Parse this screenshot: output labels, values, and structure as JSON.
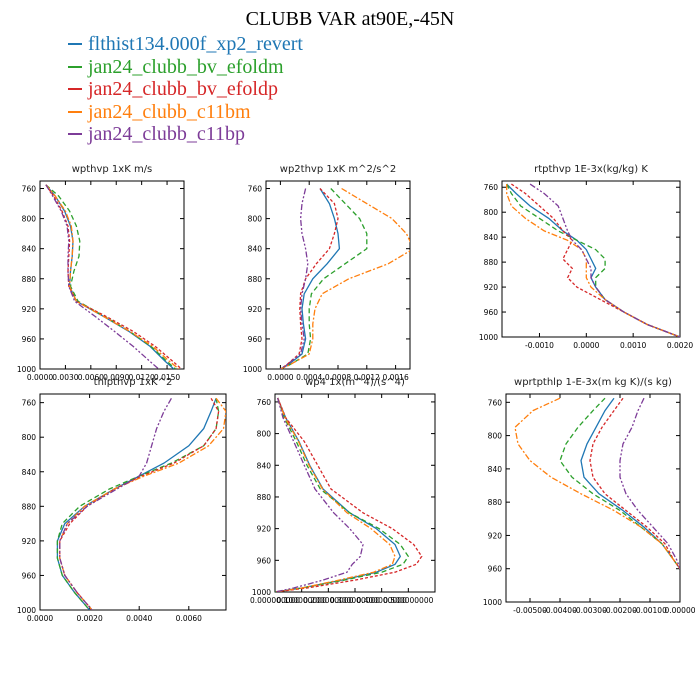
{
  "title": "CLUBB VAR at90E,-45N",
  "legend": [
    {
      "label": "flthist134.000f_xp2_revert",
      "color": "#1f77b4"
    },
    {
      "label": "jan24_clubb_bv_efoldm",
      "color": "#2ca02c"
    },
    {
      "label": "jan24_clubb_bv_efoldp",
      "color": "#d62728"
    },
    {
      "label": "jan24_clubb_c11bm",
      "color": "#ff7f0e"
    },
    {
      "label": "jan24_clubb_c11bp",
      "color": "#7d3c98"
    }
  ],
  "chart_data": [
    {
      "type": "line",
      "title": "wpthvp  1xK m/s",
      "xlim": [
        0,
        0.017
      ],
      "ylim": [
        1000,
        750
      ],
      "xticks": [
        "0.0000",
        "0.0030",
        "0.0060",
        "0.0090",
        "0.0120",
        "0.0150"
      ],
      "xtick_values": [
        0,
        0.003,
        0.006,
        0.009,
        0.012,
        0.015
      ],
      "yticks": [
        "760",
        "800",
        "840",
        "880",
        "920",
        "960",
        "1000"
      ],
      "ytick_values": [
        760,
        800,
        840,
        880,
        920,
        960,
        1000
      ],
      "y": [
        755,
        770,
        790,
        810,
        830,
        850,
        870,
        890,
        910,
        930,
        950,
        970,
        990,
        1000
      ],
      "series": [
        {
          "name": "flthist134.000f_xp2_revert",
          "x": [
            0.0007,
            0.0018,
            0.0029,
            0.0036,
            0.0039,
            0.0038,
            0.0036,
            0.0035,
            0.0043,
            0.0075,
            0.0105,
            0.013,
            0.0148,
            0.0158
          ]
        },
        {
          "name": "jan24_clubb_bv_efoldm",
          "x": [
            0.0007,
            0.0022,
            0.0035,
            0.0043,
            0.0047,
            0.0046,
            0.004,
            0.0036,
            0.0045,
            0.0076,
            0.0106,
            0.0131,
            0.015,
            0.016
          ]
        },
        {
          "name": "jan24_clubb_bv_efoldp",
          "x": [
            0.0007,
            0.0016,
            0.0026,
            0.0033,
            0.0035,
            0.0034,
            0.0033,
            0.0034,
            0.0043,
            0.0078,
            0.011,
            0.0136,
            0.0157,
            0.0167
          ]
        },
        {
          "name": "jan24_clubb_c11bm",
          "x": [
            0.0007,
            0.0018,
            0.003,
            0.0037,
            0.0039,
            0.0038,
            0.0036,
            0.0035,
            0.0043,
            0.0075,
            0.0106,
            0.0133,
            0.0153,
            0.0164
          ]
        },
        {
          "name": "jan24_clubb_c11bp",
          "x": [
            0.0007,
            0.0015,
            0.0025,
            0.0032,
            0.0034,
            0.0033,
            0.0033,
            0.0034,
            0.0041,
            0.0065,
            0.0088,
            0.011,
            0.013,
            0.014
          ]
        }
      ]
    },
    {
      "type": "line",
      "title": "wp2thvp  1xK m^2/s^2",
      "xlim": [
        -0.0002,
        0.0018
      ],
      "ylim": [
        1000,
        750
      ],
      "xticks": [
        "0.0000",
        "0.0004",
        "0.0008",
        "0.0012",
        "0.0016"
      ],
      "xtick_values": [
        0,
        0.0004,
        0.0008,
        0.0012,
        0.0016
      ],
      "yticks": [
        "760",
        "800",
        "840",
        "880",
        "920",
        "960",
        "1000"
      ],
      "ytick_values": [
        760,
        800,
        840,
        880,
        920,
        960,
        1000
      ],
      "y": [
        760,
        780,
        800,
        820,
        840,
        860,
        880,
        900,
        920,
        940,
        960,
        980,
        995,
        1000
      ],
      "series": [
        {
          "name": "flthist134.000f_xp2_revert",
          "x": [
            0.00055,
            0.00068,
            0.00075,
            0.0008,
            0.00082,
            0.00065,
            0.00045,
            0.00033,
            0.0003,
            0.00032,
            0.00035,
            0.0003,
            0.0001,
            0.0
          ]
        },
        {
          "name": "jan24_clubb_bv_efoldm",
          "x": [
            0.0007,
            0.0009,
            0.0011,
            0.0012,
            0.0012,
            0.0009,
            0.0006,
            0.00043,
            0.0004,
            0.0004,
            0.00042,
            0.00038,
            0.00012,
            0.0
          ]
        },
        {
          "name": "jan24_clubb_bv_efoldp",
          "x": [
            0.00055,
            0.00075,
            0.0008,
            0.00075,
            0.00068,
            0.0005,
            0.00035,
            0.00028,
            0.00027,
            0.00028,
            0.0003,
            0.00026,
            8e-05,
            0.0
          ]
        },
        {
          "name": "jan24_clubb_c11bm",
          "x": [
            0.00085,
            0.0012,
            0.00155,
            0.00175,
            0.00185,
            0.0015,
            0.00095,
            0.00058,
            0.00048,
            0.00045,
            0.00045,
            0.0004,
            0.00012,
            0.0
          ]
        },
        {
          "name": "jan24_clubb_c11bp",
          "x": [
            0.00035,
            0.0003,
            0.00028,
            0.0003,
            0.00035,
            0.00038,
            0.00035,
            0.0003,
            0.00028,
            0.0003,
            0.00033,
            0.00028,
            8e-05,
            0.0
          ]
        }
      ]
    },
    {
      "type": "line",
      "title": "rtpthvp  1E-3x(kg/kg) K",
      "xlim": [
        -0.0018,
        0.002
      ],
      "ylim": [
        1000,
        750
      ],
      "xticks": [
        "-0.0010",
        "0.0000",
        "0.0010",
        "0.0020"
      ],
      "xtick_values": [
        -0.001,
        0,
        0.001,
        0.002
      ],
      "yticks": [
        "760",
        "800",
        "840",
        "880",
        "920",
        "960",
        "1000"
      ],
      "ytick_values": [
        760,
        800,
        840,
        880,
        920,
        960,
        1000
      ],
      "y": [
        755,
        770,
        790,
        810,
        830,
        845,
        860,
        875,
        890,
        905,
        920,
        940,
        960,
        980,
        1000
      ],
      "series": [
        {
          "name": "flthist134.000f_xp2_revert",
          "x": [
            -0.0017,
            -0.0015,
            -0.0012,
            -0.0008,
            -0.0005,
            -0.0002,
            0.0,
            0.0001,
            0.0002,
            0.0001,
            0.0002,
            0.0004,
            0.0008,
            0.0013,
            0.002
          ]
        },
        {
          "name": "jan24_clubb_bv_efoldm",
          "x": [
            -0.0017,
            -0.0016,
            -0.0014,
            -0.001,
            -0.0006,
            -0.0002,
            0.0002,
            0.0004,
            0.0004,
            0.0002,
            0.0002,
            0.0004,
            0.0008,
            0.0013,
            0.002
          ]
        },
        {
          "name": "jan24_clubb_bv_efoldp",
          "x": [
            -0.0016,
            -0.0013,
            -0.001,
            -0.0007,
            -0.0005,
            -0.0003,
            -0.0004,
            -0.0005,
            -0.0003,
            -0.0004,
            -0.0002,
            0.0003,
            0.0008,
            0.0013,
            0.002
          ]
        },
        {
          "name": "jan24_clubb_c11bm",
          "x": [
            -0.0017,
            -0.0017,
            -0.0016,
            -0.0013,
            -0.0009,
            -0.0004,
            -0.0001,
            0.0,
            0.0,
            0.0,
            0.0001,
            0.0004,
            0.0008,
            0.0013,
            0.002
          ]
        },
        {
          "name": "jan24_clubb_c11bp",
          "x": [
            -0.0012,
            -0.0009,
            -0.0006,
            -0.0005,
            -0.0004,
            -0.0003,
            -0.0001,
            0.0,
            0.0001,
            0.0001,
            0.0002,
            0.0004,
            0.0008,
            0.0013,
            0.002
          ]
        }
      ]
    },
    {
      "type": "line",
      "title": "thlpthvp  1xK^2",
      "xlim": [
        0,
        0.0075
      ],
      "ylim": [
        1000,
        750
      ],
      "xticks": [
        "0.0000",
        "0.0020",
        "0.0040",
        "0.0060"
      ],
      "xtick_values": [
        0,
        0.002,
        0.004,
        0.006
      ],
      "yticks": [
        "760",
        "800",
        "840",
        "880",
        "920",
        "960",
        "1000"
      ],
      "ytick_values": [
        760,
        800,
        840,
        880,
        920,
        960,
        1000
      ],
      "y": [
        755,
        770,
        790,
        810,
        830,
        845,
        860,
        880,
        900,
        920,
        940,
        960,
        980,
        1000
      ],
      "series": [
        {
          "name": "flthist134.000f_xp2_revert",
          "x": [
            0.0071,
            0.0069,
            0.0066,
            0.006,
            0.005,
            0.004,
            0.003,
            0.0018,
            0.001,
            0.0007,
            0.0007,
            0.0009,
            0.0014,
            0.002
          ]
        },
        {
          "name": "jan24_clubb_bv_efoldm",
          "x": [
            0.0071,
            0.0072,
            0.0071,
            0.0066,
            0.0053,
            0.004,
            0.0028,
            0.0016,
            0.0009,
            0.0007,
            0.0007,
            0.0009,
            0.0014,
            0.002
          ]
        },
        {
          "name": "jan24_clubb_bv_efoldp",
          "x": [
            0.0069,
            0.0072,
            0.0071,
            0.0066,
            0.0054,
            0.0041,
            0.003,
            0.0019,
            0.0012,
            0.0008,
            0.0008,
            0.001,
            0.0015,
            0.0021
          ]
        },
        {
          "name": "jan24_clubb_c11bm",
          "x": [
            0.0071,
            0.0075,
            0.0074,
            0.0068,
            0.0056,
            0.0042,
            0.003,
            0.0018,
            0.0011,
            0.0008,
            0.0008,
            0.001,
            0.0015,
            0.0021
          ]
        },
        {
          "name": "jan24_clubb_c11bp",
          "x": [
            0.0053,
            0.005,
            0.0047,
            0.0045,
            0.0043,
            0.004,
            0.0031,
            0.0019,
            0.0011,
            0.0008,
            0.0008,
            0.001,
            0.0015,
            0.0021
          ]
        }
      ]
    },
    {
      "type": "line",
      "title": "wp4  1x(m^4)/(s^4)",
      "xlim": [
        0,
        0.6
      ],
      "ylim": [
        1000,
        750
      ],
      "xticks": [
        "0.000000000",
        "0.100000000",
        "0.200000000",
        "0.300000000",
        "0.400000000",
        "0.500000000"
      ],
      "xtick_values": [
        0,
        0.1,
        0.2,
        0.3,
        0.4,
        0.5
      ],
      "yticks": [
        "760",
        "800",
        "840",
        "880",
        "920",
        "960",
        "1000"
      ],
      "ytick_values": [
        760,
        800,
        840,
        880,
        920,
        960,
        1000
      ],
      "y": [
        755,
        780,
        810,
        840,
        870,
        900,
        920,
        940,
        955,
        965,
        975,
        985,
        995,
        1000
      ],
      "series": [
        {
          "name": "flthist134.000f_xp2_revert",
          "x": [
            0.01,
            0.04,
            0.09,
            0.13,
            0.18,
            0.28,
            0.38,
            0.45,
            0.47,
            0.45,
            0.38,
            0.25,
            0.1,
            0.0
          ]
        },
        {
          "name": "jan24_clubb_bv_efoldm",
          "x": [
            0.01,
            0.035,
            0.08,
            0.12,
            0.17,
            0.28,
            0.39,
            0.47,
            0.5,
            0.48,
            0.4,
            0.26,
            0.1,
            0.0
          ]
        },
        {
          "name": "jan24_clubb_bv_efoldp",
          "x": [
            0.01,
            0.04,
            0.11,
            0.16,
            0.21,
            0.33,
            0.44,
            0.52,
            0.55,
            0.53,
            0.45,
            0.3,
            0.12,
            0.0
          ]
        },
        {
          "name": "jan24_clubb_c11bm",
          "x": [
            0.01,
            0.038,
            0.088,
            0.128,
            0.178,
            0.27,
            0.36,
            0.43,
            0.45,
            0.44,
            0.37,
            0.24,
            0.1,
            0.0
          ]
        },
        {
          "name": "jan24_clubb_c11bp",
          "x": [
            0.01,
            0.03,
            0.07,
            0.11,
            0.15,
            0.22,
            0.28,
            0.33,
            0.32,
            0.29,
            0.27,
            0.18,
            0.07,
            0.0
          ]
        }
      ]
    },
    {
      "type": "line",
      "title": "wprtpthlp  1-E-3x(m kg K)/(s kg)",
      "xlim": [
        -0.0058,
        0
      ],
      "ylim": [
        1000,
        750
      ],
      "xticks": [
        "-0.00500",
        "-0.00400",
        "-0.00300",
        "-0.00200",
        "-0.00100",
        "0.00000"
      ],
      "xtick_values": [
        -0.005,
        -0.004,
        -0.003,
        -0.002,
        -0.001,
        0
      ],
      "yticks": [
        "760",
        "800",
        "840",
        "880",
        "920",
        "960",
        "1000"
      ],
      "ytick_values": [
        760,
        800,
        840,
        880,
        920,
        960,
        1000
      ],
      "y": [
        755,
        770,
        790,
        810,
        830,
        850,
        870,
        890,
        910,
        930,
        950,
        960
      ],
      "series": [
        {
          "name": "flthist134.000f_xp2_revert",
          "x": [
            -0.0022,
            -0.0025,
            -0.0028,
            -0.0031,
            -0.0033,
            -0.0032,
            -0.0027,
            -0.0019,
            -0.0012,
            -0.0006,
            -0.0002,
            0.0
          ]
        },
        {
          "name": "jan24_clubb_bv_efoldm",
          "x": [
            -0.0025,
            -0.0029,
            -0.0034,
            -0.0038,
            -0.004,
            -0.0036,
            -0.0029,
            -0.002,
            -0.0013,
            -0.0006,
            -0.0002,
            0.0
          ]
        },
        {
          "name": "jan24_clubb_bv_efoldp",
          "x": [
            -0.0019,
            -0.0022,
            -0.0026,
            -0.0029,
            -0.003,
            -0.0029,
            -0.0025,
            -0.0018,
            -0.0011,
            -0.0005,
            -0.0002,
            0.0
          ]
        },
        {
          "name": "jan24_clubb_c11bm",
          "x": [
            -0.004,
            -0.0049,
            -0.0055,
            -0.0054,
            -0.005,
            -0.0043,
            -0.0033,
            -0.0022,
            -0.0013,
            -0.0006,
            -0.0002,
            0.0
          ]
        },
        {
          "name": "jan24_clubb_c11bp",
          "x": [
            -0.0012,
            -0.0014,
            -0.0016,
            -0.0019,
            -0.002,
            -0.002,
            -0.0018,
            -0.0014,
            -0.0009,
            -0.0004,
            -0.0001,
            0.0
          ]
        }
      ]
    }
  ]
}
